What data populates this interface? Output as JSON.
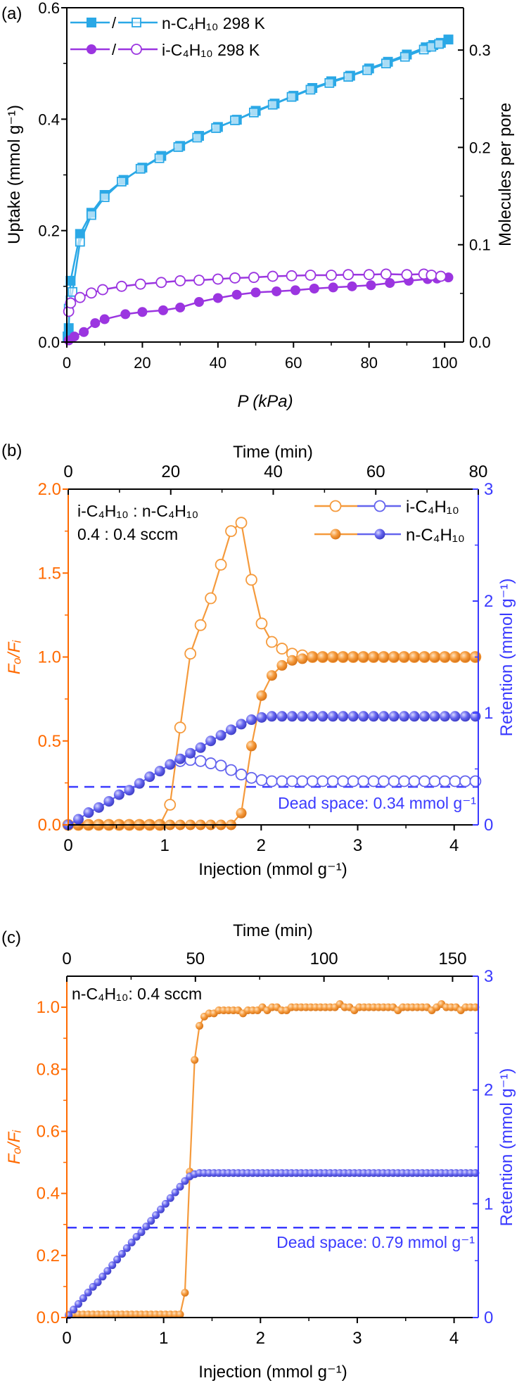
{
  "chart_data": [
    {
      "id": "a",
      "type": "line",
      "panel_label": "(a)",
      "xlabel": "P (kPa)",
      "ylabel": "Uptake (mmol g⁻¹)",
      "y2label": "Molecules per pore",
      "xlim": [
        0,
        105
      ],
      "ylim": [
        0,
        0.6
      ],
      "y2lim": [
        0,
        0.3435
      ],
      "xticks": [
        "0",
        "20",
        "40",
        "60",
        "80",
        "100"
      ],
      "xminor": [
        10,
        30,
        50,
        70,
        90
      ],
      "yticks": [
        "0.0",
        "0.2",
        "0.4",
        "0.6"
      ],
      "yminor": [
        0.1,
        0.3,
        0.5
      ],
      "y2ticks": [
        "0.0",
        "0.1",
        "0.2",
        "0.3"
      ],
      "y2minor": [
        0.05,
        0.15,
        0.25
      ],
      "colors": {
        "left_axis": "#000000",
        "right_axis": "#000000",
        "n": "#2aa8e6",
        "i": "#9b35e0"
      },
      "legend": [
        {
          "label": "n-C₄H₁₀ 298 K",
          "separator": "/",
          "color": "#2aa8e6",
          "markers": [
            "square-filled",
            "square-open"
          ]
        },
        {
          "label": "i-C₄H₁₀ 298 K",
          "separator": "/",
          "color": "#9b35e0",
          "markers": [
            "circle-filled",
            "circle-open"
          ]
        }
      ],
      "series": [
        {
          "name": "n-C4H10 adsorption",
          "axis": "left",
          "color": "#2aa8e6",
          "marker": "square-filled",
          "x": [
            0.2,
            0.5,
            1,
            3.5,
            6.5,
            10,
            15,
            20,
            25,
            30,
            35,
            40,
            45,
            50,
            55,
            60,
            65,
            70,
            75,
            80,
            85,
            90,
            95,
            97,
            99,
            101
          ],
          "y": [
            0.01,
            0.025,
            0.11,
            0.194,
            0.232,
            0.264,
            0.291,
            0.313,
            0.334,
            0.352,
            0.37,
            0.386,
            0.399,
            0.415,
            0.428,
            0.442,
            0.456,
            0.468,
            0.478,
            0.491,
            0.503,
            0.516,
            0.529,
            0.533,
            0.537,
            0.543
          ]
        },
        {
          "name": "n-C4H10 desorption",
          "axis": "left",
          "color": "#2aa8e6",
          "marker": "square-open",
          "x": [
            0.5,
            1,
            1.5,
            3.5,
            6.5,
            10,
            14.5,
            19.5,
            24.5,
            29.5,
            34.5,
            39.5,
            44.5,
            49.5,
            54.5,
            59.5,
            64.5,
            69.5,
            74.5,
            79.5,
            84.5,
            89.5,
            94.5,
            96.5,
            98.5
          ],
          "y": [
            0.06,
            0.075,
            0.09,
            0.18,
            0.228,
            0.26,
            0.288,
            0.311,
            0.33,
            0.35,
            0.367,
            0.384,
            0.398,
            0.412,
            0.426,
            0.44,
            0.453,
            0.465,
            0.476,
            0.488,
            0.5,
            0.512,
            0.525,
            0.53,
            0.535
          ]
        },
        {
          "name": "i-C4H10 adsorption",
          "axis": "left",
          "color": "#9b35e0",
          "marker": "circle-filled",
          "x": [
            0.5,
            2,
            4.5,
            7.5,
            10,
            15.5,
            20,
            25.5,
            30,
            35,
            40,
            45,
            50,
            55.5,
            60.5,
            65.5,
            70.5,
            75.5,
            80.5,
            85.5,
            90.5,
            95.5,
            98,
            101
          ],
          "y": [
            0.003,
            0.01,
            0.018,
            0.034,
            0.041,
            0.05,
            0.054,
            0.057,
            0.062,
            0.072,
            0.079,
            0.085,
            0.089,
            0.091,
            0.093,
            0.096,
            0.098,
            0.1,
            0.102,
            0.106,
            0.11,
            0.113,
            0.114,
            0.116
          ]
        },
        {
          "name": "i-C4H10 desorption",
          "axis": "left",
          "color": "#9b35e0",
          "marker": "circle-open",
          "x": [
            0.5,
            1,
            3.5,
            6.5,
            9.5,
            14.5,
            19.5,
            25,
            30,
            35,
            40,
            44.5,
            49.5,
            54.5,
            59.5,
            64.5,
            70,
            74.5,
            80,
            84.5,
            90,
            94.5,
            96.5,
            99
          ],
          "y": [
            0.055,
            0.07,
            0.08,
            0.088,
            0.094,
            0.1,
            0.104,
            0.107,
            0.11,
            0.111,
            0.113,
            0.115,
            0.116,
            0.118,
            0.119,
            0.12,
            0.12,
            0.121,
            0.121,
            0.122,
            0.121,
            0.122,
            0.12,
            0.118
          ]
        }
      ]
    },
    {
      "id": "b",
      "type": "line",
      "panel_label": "(b)",
      "xlabel": "Injection (mmol g⁻¹)",
      "x2label": "Time (min)",
      "ylabel": "Fₒ/Fᵢ",
      "y2label": "Retention (mmol g⁻¹)",
      "xlim": [
        0,
        4.25
      ],
      "x2lim": [
        0,
        80
      ],
      "ylim": [
        0,
        2.0
      ],
      "y2lim": [
        0,
        3
      ],
      "xticks": [
        "0",
        "1",
        "2",
        "3",
        "4"
      ],
      "xminor": [
        0.5,
        1.5,
        2.5,
        3.5
      ],
      "x2ticks": [
        "0",
        "20",
        "40",
        "60",
        "80"
      ],
      "x2minor": [
        10,
        30,
        50,
        70
      ],
      "yticks": [
        "0.0",
        "0.5",
        "1.0",
        "1.5",
        "2.0"
      ],
      "yminor": [
        0.25,
        0.75,
        1.25,
        1.75
      ],
      "y2ticks": [
        "0",
        "1",
        "2",
        "3"
      ],
      "y2minor": [
        0.5,
        1.5,
        2.5
      ],
      "colors": {
        "left_axis": "#ff6a00",
        "right_axis": "#3a3aff",
        "orange": "#f59a3c",
        "blue": "#6464ee"
      },
      "annotations": [
        "i-C₄H₁₀ : n-C₄H₁₀",
        "0.4 : 0.4 sccm"
      ],
      "dead_space": {
        "value": 0.34,
        "label": "Dead space: 0.34 mmol g⁻¹"
      },
      "legend": [
        {
          "label": "i-C₄H₁₀",
          "marker": "open"
        },
        {
          "label": "n-C₄H₁₀",
          "marker": "sphere"
        }
      ],
      "series": [
        {
          "name": "i-C4H10 Fo/Fi",
          "axis": "left",
          "color": "#f59a3c",
          "marker": "circle-open",
          "x_start": 0,
          "x_step": 0.1055,
          "y": [
            0,
            0,
            0,
            0,
            0,
            0,
            0,
            0,
            0,
            0,
            0.12,
            0.58,
            1.02,
            1.19,
            1.35,
            1.55,
            1.75,
            1.8,
            1.46,
            1.2,
            1.09,
            1.05,
            1.02,
            1.01,
            1.0,
            1.0,
            1.0,
            1.0,
            1.0,
            1.0,
            1.0,
            1.0,
            1.0,
            1.0,
            1.0,
            1.0,
            1.0,
            1.0,
            1.0,
            1.0,
            1.0
          ]
        },
        {
          "name": "n-C4H10 Fo/Fi",
          "axis": "left",
          "color": "#f59a3c",
          "marker": "sphere",
          "x_start": 0,
          "x_step": 0.1055,
          "y": [
            0,
            0,
            0,
            0,
            0,
            0,
            0,
            0,
            0,
            0,
            0,
            0,
            0,
            0,
            0,
            0,
            0,
            0.07,
            0.47,
            0.77,
            0.89,
            0.95,
            0.98,
            0.99,
            1.0,
            1.0,
            1.0,
            1.0,
            1.0,
            1.0,
            1.0,
            1.0,
            1.0,
            1.0,
            1.0,
            1.0,
            1.0,
            1.0,
            1.0,
            1.0,
            1.0
          ]
        },
        {
          "name": "i-C4H10 retention",
          "axis": "right",
          "color": "#6464ee",
          "marker": "circle-open",
          "x_start": 1.1605,
          "x_step": 0.1055,
          "y": [
            0.57,
            0.58,
            0.57,
            0.55,
            0.53,
            0.49,
            0.45,
            0.42,
            0.4,
            0.39,
            0.39,
            0.39,
            0.39,
            0.39,
            0.39,
            0.39,
            0.39,
            0.39,
            0.39,
            0.39,
            0.39,
            0.39,
            0.39,
            0.39,
            0.39,
            0.39,
            0.39,
            0.39,
            0.39,
            0.39
          ]
        },
        {
          "name": "n-C4H10 retention",
          "axis": "right",
          "color": "#6464ee",
          "marker": "sphere",
          "x_start": 0,
          "x_step": 0.1055,
          "y": [
            0,
            0.05,
            0.11,
            0.155,
            0.21,
            0.27,
            0.31,
            0.37,
            0.43,
            0.48,
            0.54,
            0.59,
            0.64,
            0.69,
            0.75,
            0.8,
            0.85,
            0.9,
            0.94,
            0.96,
            0.97,
            0.97,
            0.97,
            0.97,
            0.97,
            0.97,
            0.97,
            0.97,
            0.97,
            0.97,
            0.97,
            0.97,
            0.97,
            0.97,
            0.97,
            0.97,
            0.97,
            0.97,
            0.97,
            0.97,
            0.97
          ]
        }
      ]
    },
    {
      "id": "c",
      "type": "line",
      "panel_label": "(c)",
      "xlabel": "Injection (mmol g⁻¹)",
      "x2label": "Time (min)",
      "ylabel": "Fₒ/Fᵢ",
      "y2label": "Retention (mmol g⁻¹)",
      "xlim": [
        0,
        4.25
      ],
      "x2lim": [
        0,
        160
      ],
      "ylim": [
        0,
        1.1
      ],
      "y2lim": [
        0,
        3
      ],
      "xticks": [
        "0",
        "1",
        "2",
        "3",
        "4"
      ],
      "xminor": [
        0.5,
        1.5,
        2.5,
        3.5
      ],
      "x2ticks": [
        "0",
        "50",
        "100",
        "150"
      ],
      "x2minor": [
        25,
        75,
        125
      ],
      "yticks": [
        "0.0",
        "0.2",
        "0.4",
        "0.6",
        "0.8",
        "1.0"
      ],
      "yminor": [
        0.1,
        0.3,
        0.5,
        0.7,
        0.9
      ],
      "y2ticks": [
        "0",
        "1",
        "2",
        "3"
      ],
      "y2minor": [
        0.5,
        1.5,
        2.5
      ],
      "colors": {
        "left_axis": "#ff6a00",
        "right_axis": "#3a3aff",
        "orange": "#f59a3c",
        "blue": "#6464ee"
      },
      "annotations": [
        "n-C₄H₁₀: 0.4 sccm"
      ],
      "dead_space": {
        "value": 0.79,
        "label": "Dead space: 0.79 mmol g⁻¹"
      },
      "series": [
        {
          "name": "n-C4H10 Fo/Fi",
          "axis": "left",
          "color": "#f59a3c",
          "marker": "sphere-small",
          "x_start": 0.02,
          "x_step": 0.05,
          "y": [
            0.01,
            0.01,
            0.01,
            0.01,
            0.01,
            0.01,
            0.01,
            0.01,
            0.01,
            0.01,
            0.01,
            0.01,
            0.01,
            0.01,
            0.01,
            0.01,
            0.01,
            0.01,
            0.01,
            0.01,
            0.01,
            0.01,
            0.01,
            0.01,
            0.08,
            0.47,
            0.83,
            0.94,
            0.97,
            0.98,
            0.98,
            0.99,
            0.99,
            0.99,
            0.99,
            0.99,
            0.98,
            0.99,
            0.99,
            0.99,
            1.0,
            0.99,
            1.0,
            1.0,
            0.99,
            0.99,
            1.0,
            1.0,
            1.0,
            1.0,
            1.0,
            1.0,
            1.0,
            1.0,
            1.0,
            1.0,
            1.01,
            1.0,
            1.0,
            0.99,
            1.0,
            1.0,
            1.0,
            1.0,
            1.0,
            1.0,
            1.0,
            1.0,
            0.99,
            1.0,
            1.0,
            1.0,
            1.0,
            1.0,
            1.0,
            0.99,
            1.0,
            1.01,
            1.0,
            1.0,
            1.0,
            0.99,
            1.0,
            1.0,
            1.0
          ]
        },
        {
          "name": "n-C4H10 retention",
          "axis": "right",
          "color": "#6464ee",
          "marker": "sphere-small",
          "x_start": 0.02,
          "x_step": 0.05,
          "y": [
            0.02,
            0.07,
            0.12,
            0.17,
            0.22,
            0.27,
            0.31,
            0.36,
            0.41,
            0.46,
            0.51,
            0.56,
            0.61,
            0.66,
            0.71,
            0.75,
            0.8,
            0.85,
            0.9,
            0.95,
            1.0,
            1.05,
            1.1,
            1.15,
            1.2,
            1.24,
            1.26,
            1.27,
            1.27,
            1.27,
            1.27,
            1.27,
            1.27,
            1.27,
            1.27,
            1.27,
            1.27,
            1.27,
            1.27,
            1.27,
            1.27,
            1.27,
            1.27,
            1.27,
            1.27,
            1.27,
            1.27,
            1.27,
            1.27,
            1.27,
            1.27,
            1.27,
            1.27,
            1.27,
            1.27,
            1.27,
            1.27,
            1.27,
            1.27,
            1.27,
            1.27,
            1.27,
            1.27,
            1.27,
            1.27,
            1.27,
            1.27,
            1.27,
            1.27,
            1.27,
            1.27,
            1.27,
            1.27,
            1.27,
            1.27,
            1.27,
            1.27,
            1.27,
            1.27,
            1.27,
            1.27,
            1.27,
            1.27,
            1.27,
            1.27
          ]
        }
      ]
    }
  ]
}
